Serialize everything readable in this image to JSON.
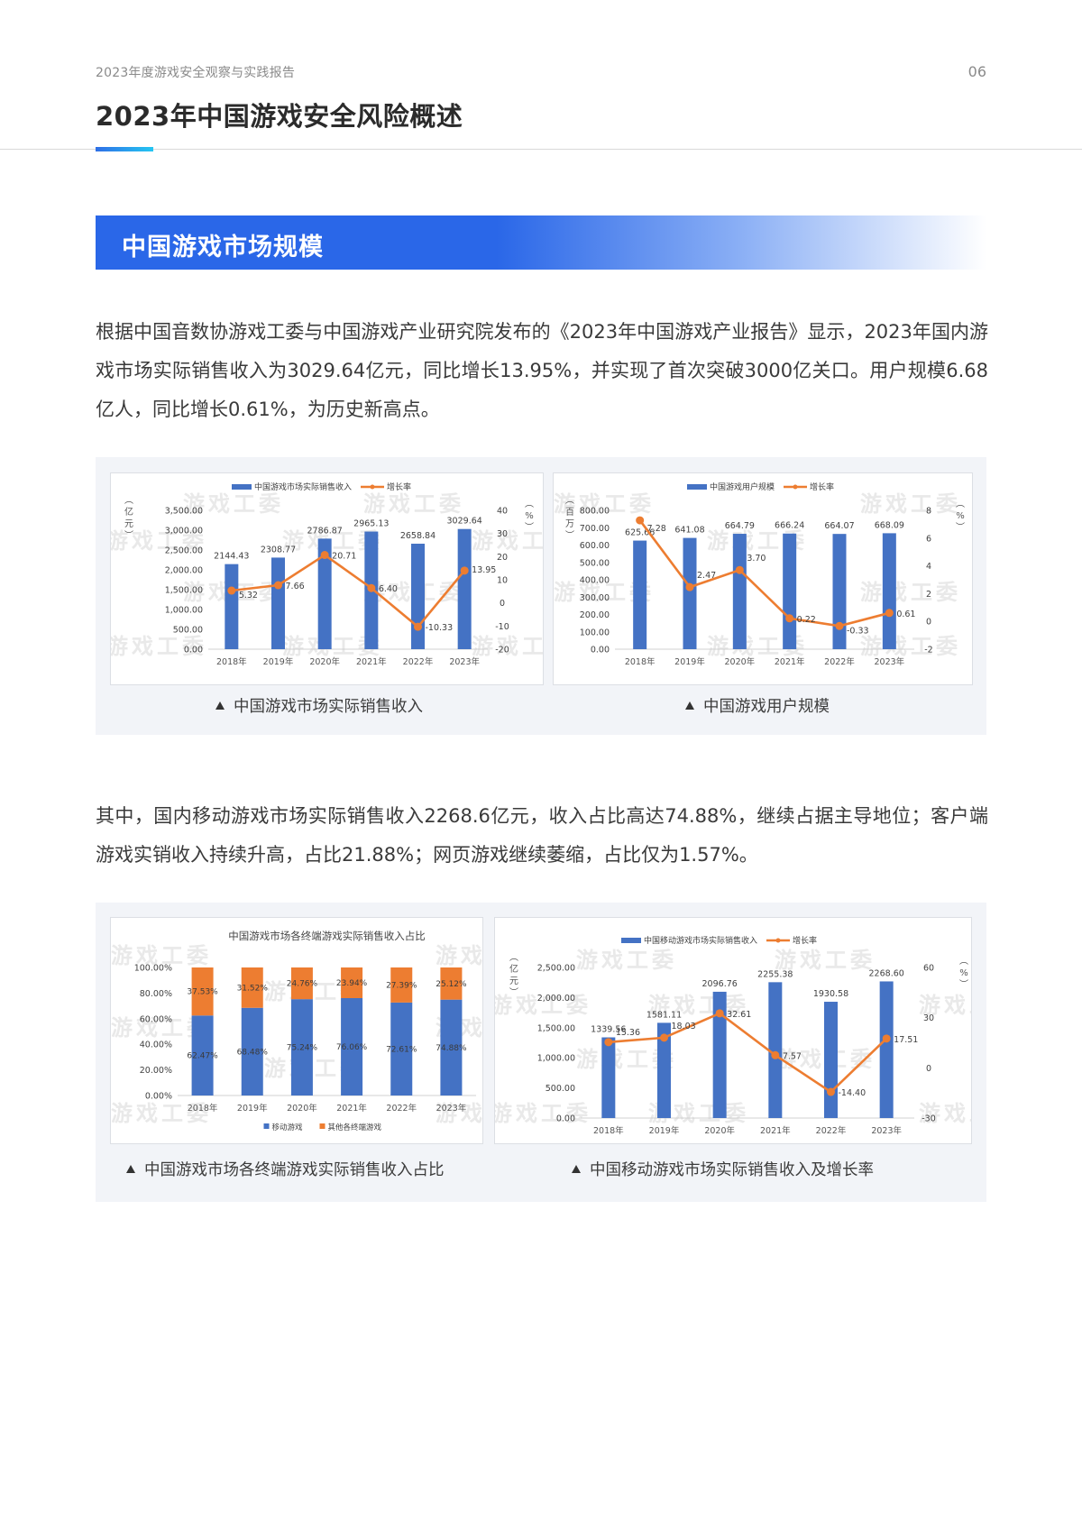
{
  "header": {
    "doc_title": "2023年度游戏安全观察与实践报告",
    "page_number": "06",
    "page_title": "2023年中国游戏安全风险概述",
    "accent_gradient": [
      "#2f6fe6",
      "#24c6f2"
    ]
  },
  "section": {
    "title": "中国游戏市场规模",
    "banner_color": "#2a67e8"
  },
  "paragraphs": {
    "p1": "根据中国音数协游戏工委与中国游戏产业研究院发布的《2023年中国游戏产业报告》显示，2023年国内游戏市场实际销售收入为3029.64亿元，同比增长13.95%，并实现了首次突破3000亿关口。用户规模6.68亿人，同比增长0.61%，为历史新高点。",
    "p2": "其中，国内移动游戏市场实际销售收入2268.6亿元，收入占比高达74.88%，继续占据主导地位；客户端游戏实销收入持续升高，占比21.88%；网页游戏继续萎缩，占比仅为1.57%。"
  },
  "watermark": "游戏工委",
  "colors": {
    "bar": "#4472c4",
    "line": "#ed7d31",
    "other": "#ed7d31"
  },
  "captions": {
    "c1": "中国游戏市场实际销售收入",
    "c2": "中国游戏用户规模",
    "c3": "中国游戏市场各终端游戏实际销售收入占比",
    "c4": "中国移动游戏市场实际销售收入及增长率"
  },
  "chart_data": [
    {
      "type": "bar",
      "id": "market-revenue",
      "title": "",
      "caption": "中国游戏市场实际销售收入",
      "categories": [
        "2018年",
        "2019年",
        "2020年",
        "2021年",
        "2022年",
        "2023年"
      ],
      "series": [
        {
          "name": "中国游戏市场实际销售收入",
          "type": "bar",
          "axis": "left",
          "values": [
            2144.43,
            2308.77,
            2786.87,
            2965.13,
            2658.84,
            3029.64
          ]
        },
        {
          "name": "增长率",
          "type": "line",
          "axis": "right",
          "values": [
            5.32,
            7.66,
            20.71,
            6.4,
            -10.33,
            13.95
          ]
        }
      ],
      "ylabel": "（亿元）",
      "ylabel_right": "（%）",
      "ylim": [
        0,
        3500
      ],
      "yticks": [
        "0.00",
        "500.00",
        "1,000.00",
        "1,500.00",
        "2,000.00",
        "2,500.00",
        "3,000.00",
        "3,500.00"
      ],
      "ylim_right": [
        -20,
        40
      ],
      "yticks_right": [
        "-20",
        "-10",
        "0",
        "10",
        "20",
        "30",
        "40"
      ],
      "legend_position": "top",
      "grid": false
    },
    {
      "type": "bar",
      "id": "user-scale",
      "title": "",
      "caption": "中国游戏用户规模",
      "categories": [
        "2018年",
        "2019年",
        "2020年",
        "2021年",
        "2022年",
        "2023年"
      ],
      "series": [
        {
          "name": "中国游戏用户规模",
          "type": "bar",
          "axis": "left",
          "values": [
            625.66,
            641.08,
            664.79,
            666.24,
            664.07,
            668.09
          ]
        },
        {
          "name": "增长率",
          "type": "line",
          "axis": "right",
          "values": [
            7.28,
            2.47,
            3.7,
            0.22,
            -0.33,
            0.61
          ]
        }
      ],
      "ylabel": "（百万）",
      "ylabel_right": "（%）",
      "ylim": [
        0,
        800
      ],
      "yticks": [
        "0.00",
        "100.00",
        "200.00",
        "300.00",
        "400.00",
        "500.00",
        "600.00",
        "700.00",
        "800.00"
      ],
      "ylim_right": [
        -2,
        8
      ],
      "yticks_right": [
        "-2",
        "0",
        "2",
        "4",
        "6",
        "8"
      ],
      "legend_position": "top",
      "grid": false
    },
    {
      "type": "bar",
      "stacked": true,
      "id": "terminal-share",
      "title": "中国游戏市场各终端游戏实际销售收入占比",
      "caption": "中国游戏市场各终端游戏实际销售收入占比",
      "categories": [
        "2018年",
        "2019年",
        "2020年",
        "2021年",
        "2022年",
        "2023年"
      ],
      "series": [
        {
          "name": "移动游戏",
          "values": [
            62.47,
            68.48,
            75.24,
            76.06,
            72.61,
            74.88
          ]
        },
        {
          "name": "其他各终端游戏",
          "values": [
            37.53,
            31.52,
            24.76,
            23.94,
            27.39,
            25.12
          ]
        }
      ],
      "value_labels": {
        "移动游戏": [
          "62.47%",
          "68.48%",
          "75.24%",
          "76.06%",
          "72.61%",
          "74.88%"
        ],
        "其他各终端游戏": [
          "37.53%",
          "31.52%",
          "24.76%",
          "23.94%",
          "27.39%",
          "25.12%"
        ]
      },
      "ylim": [
        0,
        100
      ],
      "yticks": [
        "0.00%",
        "20.00%",
        "40.00%",
        "60.00%",
        "80.00%",
        "100.00%"
      ],
      "legend_position": "bottom",
      "grid": false
    },
    {
      "type": "bar",
      "id": "mobile-revenue",
      "title": "",
      "caption": "中国移动游戏市场实际销售收入及增长率",
      "categories": [
        "2018年",
        "2019年",
        "2020年",
        "2021年",
        "2022年",
        "2023年"
      ],
      "series": [
        {
          "name": "中国移动游戏市场实际销售收入",
          "type": "bar",
          "axis": "left",
          "values": [
            1339.56,
            1581.11,
            2096.76,
            2255.38,
            1930.58,
            2268.6
          ]
        },
        {
          "name": "增长率",
          "type": "line",
          "axis": "right",
          "values": [
            15.36,
            18.03,
            32.61,
            7.57,
            -14.4,
            17.51
          ]
        }
      ],
      "ylabel": "（亿元）",
      "ylabel_right": "（%）",
      "ylim": [
        0,
        2500
      ],
      "yticks": [
        "0.00",
        "500.00",
        "1,000.00",
        "1,500.00",
        "2,000.00",
        "2,500.00"
      ],
      "ylim_right": [
        -30,
        60
      ],
      "yticks_right": [
        "-30",
        "0",
        "30",
        "60"
      ],
      "legend_position": "top",
      "grid": false
    }
  ]
}
